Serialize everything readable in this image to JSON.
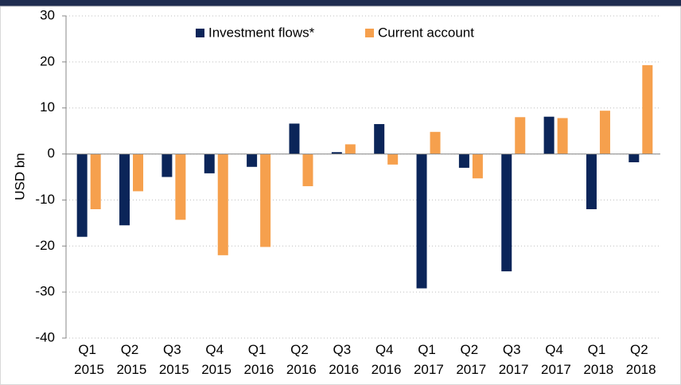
{
  "chart_data": {
    "type": "bar",
    "ylabel": "USD bn",
    "categories": [
      "Q1 2015",
      "Q2 2015",
      "Q3 2015",
      "Q4 2015",
      "Q1 2016",
      "Q2 2016",
      "Q3 2016",
      "Q4 2016",
      "Q1 2017",
      "Q2 2017",
      "Q3 2017",
      "Q4 2017",
      "Q1 2018",
      "Q2 2018"
    ],
    "series": [
      {
        "name": "Investment flows*",
        "color": "#0b2559",
        "values": [
          -18,
          -15.5,
          -5,
          -4.2,
          -2.8,
          6.6,
          0.4,
          6.5,
          -29.2,
          -3,
          -25.5,
          8.1,
          -12,
          -1.8
        ]
      },
      {
        "name": "Current account",
        "color": "#f6a04d",
        "values": [
          -12,
          -8.1,
          -14.3,
          -22,
          -20.2,
          -7,
          2.1,
          -2.3,
          4.8,
          -5.3,
          8,
          7.8,
          9.4,
          19.3
        ]
      }
    ],
    "ylim": [
      -40,
      30
    ],
    "yticks": [
      -40,
      -30,
      -20,
      -10,
      0,
      10,
      20,
      30
    ],
    "grid": true,
    "legend": "top"
  }
}
